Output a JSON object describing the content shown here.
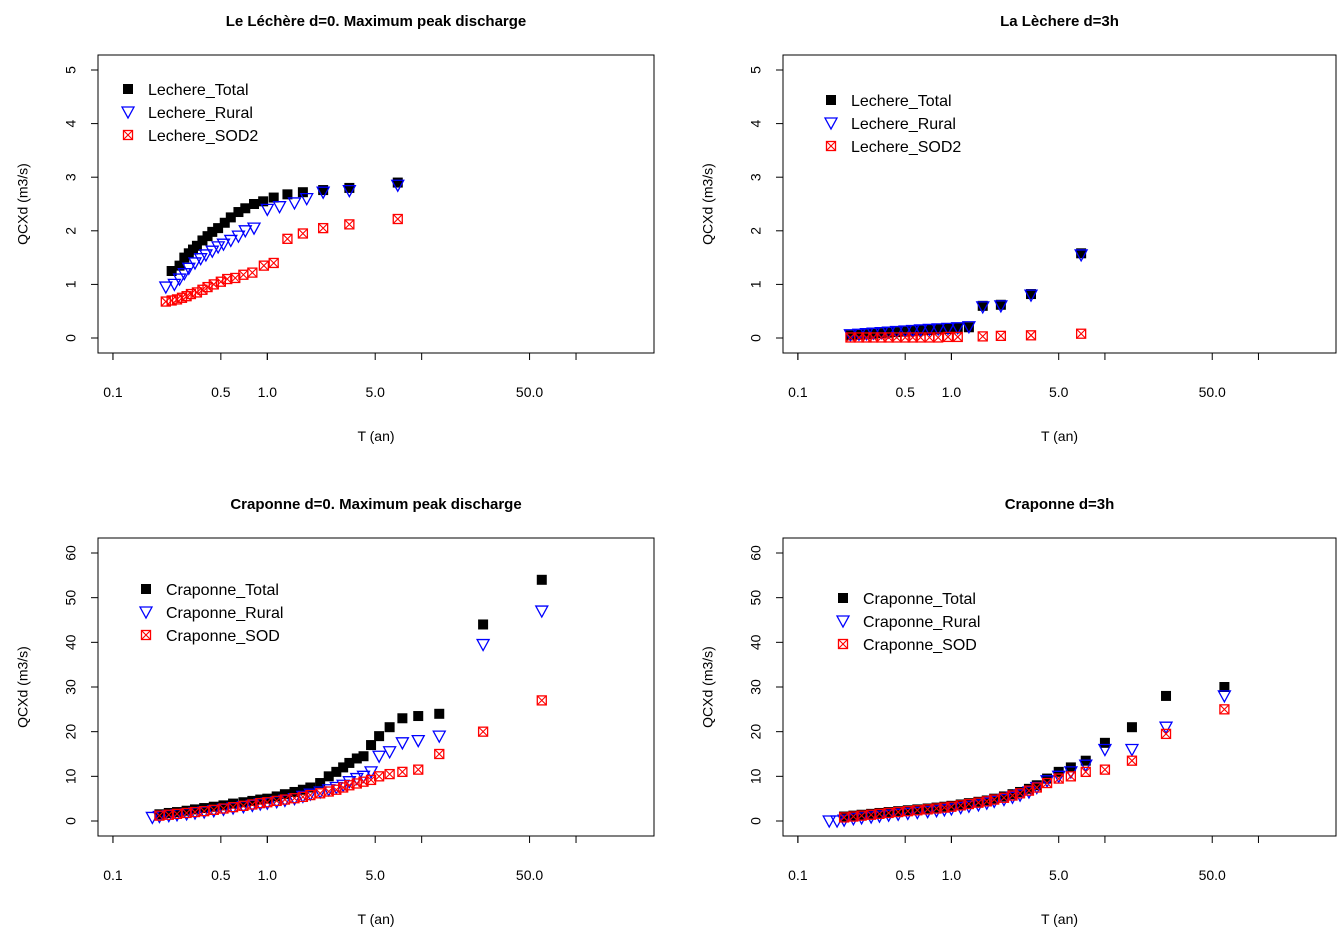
{
  "chart_data": [
    {
      "type": "scatter",
      "title": "Le Léchère d=0. Maximum peak discharge",
      "xlabel": "T (an)",
      "ylabel": "QCXd (m3/s)",
      "xscale": "log",
      "xlim": [
        0.08,
        320
      ],
      "ylim": [
        0,
        5
      ],
      "xticks": [
        0.1,
        0.5,
        1.0,
        5.0,
        50.0
      ],
      "yticks": [
        0,
        1,
        2,
        3,
        4,
        5
      ],
      "grid": false,
      "legend_position": "top-left",
      "series": [
        {
          "name": "Lechere_Total",
          "marker": "square",
          "color": "#000000",
          "x": [
            0.24,
            0.27,
            0.29,
            0.31,
            0.33,
            0.35,
            0.38,
            0.41,
            0.44,
            0.48,
            0.53,
            0.58,
            0.65,
            0.72,
            0.82,
            0.94,
            1.1,
            1.35,
            1.7,
            2.3,
            3.4,
            7.0
          ],
          "y": [
            1.25,
            1.35,
            1.5,
            1.58,
            1.65,
            1.72,
            1.82,
            1.9,
            1.98,
            2.05,
            2.15,
            2.25,
            2.35,
            2.42,
            2.5,
            2.55,
            2.62,
            2.68,
            2.72,
            2.76,
            2.8,
            2.9
          ]
        },
        {
          "name": "Lechere_Rural",
          "marker": "triangle-down",
          "color": "#0000ff",
          "x": [
            0.22,
            0.25,
            0.27,
            0.29,
            0.31,
            0.34,
            0.37,
            0.4,
            0.44,
            0.48,
            0.52,
            0.58,
            0.65,
            0.72,
            0.82,
            1.0,
            1.2,
            1.5,
            1.8,
            2.3,
            3.4,
            7.0
          ],
          "y": [
            0.95,
            1.0,
            1.1,
            1.2,
            1.3,
            1.4,
            1.48,
            1.55,
            1.62,
            1.7,
            1.75,
            1.82,
            1.9,
            2.0,
            2.05,
            2.4,
            2.45,
            2.52,
            2.6,
            2.72,
            2.75,
            2.85
          ]
        },
        {
          "name": "Lechere_SOD2",
          "marker": "square-x",
          "color": "#ff0000",
          "x": [
            0.22,
            0.24,
            0.26,
            0.28,
            0.3,
            0.32,
            0.35,
            0.38,
            0.41,
            0.45,
            0.5,
            0.55,
            0.62,
            0.7,
            0.8,
            0.95,
            1.1,
            1.35,
            1.7,
            2.3,
            3.4,
            7.0
          ],
          "y": [
            0.68,
            0.7,
            0.72,
            0.75,
            0.78,
            0.82,
            0.85,
            0.9,
            0.95,
            1.0,
            1.05,
            1.1,
            1.12,
            1.18,
            1.22,
            1.35,
            1.4,
            1.85,
            1.95,
            2.05,
            2.12,
            2.22
          ]
        }
      ]
    },
    {
      "type": "scatter",
      "title": "La Lèchere d=3h",
      "xlabel": "T (an)",
      "ylabel": "QCXd (m3/s)",
      "xscale": "log",
      "xlim": [
        0.08,
        320
      ],
      "ylim": [
        0,
        5
      ],
      "xticks": [
        0.1,
        0.5,
        1.0,
        5.0,
        50.0
      ],
      "yticks": [
        0,
        1,
        2,
        3,
        4,
        5
      ],
      "grid": false,
      "legend_position": "top-left",
      "series": [
        {
          "name": "Lechere_Total",
          "marker": "square",
          "color": "#000000",
          "x": [
            0.22,
            0.25,
            0.28,
            0.31,
            0.35,
            0.39,
            0.44,
            0.5,
            0.56,
            0.63,
            0.72,
            0.82,
            0.95,
            1.1,
            1.3,
            1.6,
            2.1,
            3.3,
            7.0
          ],
          "y": [
            0.05,
            0.06,
            0.07,
            0.08,
            0.09,
            0.1,
            0.11,
            0.12,
            0.13,
            0.14,
            0.15,
            0.16,
            0.17,
            0.18,
            0.2,
            0.6,
            0.62,
            0.82,
            1.58
          ]
        },
        {
          "name": "Lechere_Rural",
          "marker": "triangle-down",
          "color": "#0000ff",
          "x": [
            0.22,
            0.25,
            0.28,
            0.31,
            0.35,
            0.39,
            0.44,
            0.5,
            0.56,
            0.63,
            0.72,
            0.82,
            0.95,
            1.1,
            1.3,
            1.6,
            2.1,
            3.3,
            7.0
          ],
          "y": [
            0.06,
            0.07,
            0.08,
            0.09,
            0.1,
            0.11,
            0.12,
            0.13,
            0.14,
            0.15,
            0.16,
            0.17,
            0.18,
            0.19,
            0.21,
            0.58,
            0.6,
            0.8,
            1.55
          ]
        },
        {
          "name": "Lechere_SOD2",
          "marker": "square-x",
          "color": "#ff0000",
          "x": [
            0.22,
            0.25,
            0.28,
            0.31,
            0.35,
            0.39,
            0.44,
            0.5,
            0.56,
            0.63,
            0.72,
            0.82,
            0.95,
            1.1,
            1.6,
            2.1,
            3.3,
            7.0
          ],
          "y": [
            0.01,
            0.01,
            0.01,
            0.01,
            0.01,
            0.01,
            0.01,
            0.01,
            0.01,
            0.01,
            0.01,
            0.01,
            0.02,
            0.02,
            0.03,
            0.04,
            0.05,
            0.08
          ]
        }
      ]
    },
    {
      "type": "scatter",
      "title": "Craponne d=0. Maximum peak discharge",
      "xlabel": "T (an)",
      "ylabel": "QCXd (m3/s)",
      "xscale": "log",
      "xlim": [
        0.08,
        320
      ],
      "ylim": [
        0,
        60
      ],
      "xticks": [
        0.1,
        0.5,
        1.0,
        5.0,
        50.0
      ],
      "yticks": [
        0,
        10,
        20,
        30,
        40,
        50,
        60
      ],
      "grid": false,
      "legend_position": "top-left",
      "series": [
        {
          "name": "Craponne_Total",
          "marker": "square",
          "color": "#000000",
          "x": [
            0.2,
            0.23,
            0.26,
            0.3,
            0.34,
            0.39,
            0.45,
            0.52,
            0.6,
            0.7,
            0.8,
            0.9,
            1.0,
            1.15,
            1.3,
            1.5,
            1.7,
            1.9,
            2.2,
            2.5,
            2.8,
            3.1,
            3.4,
            3.8,
            4.2,
            4.7,
            5.3,
            6.2,
            7.5,
            9.5,
            13,
            25,
            60
          ],
          "y": [
            1.5,
            1.8,
            2.0,
            2.3,
            2.6,
            2.9,
            3.2,
            3.5,
            3.9,
            4.2,
            4.5,
            4.8,
            5.0,
            5.5,
            6.0,
            6.5,
            7.0,
            7.5,
            8.5,
            10,
            11,
            12,
            13,
            14,
            14.5,
            17,
            19,
            21,
            23,
            23.5,
            24,
            44,
            54
          ]
        },
        {
          "name": "Craponne_Rural",
          "marker": "triangle-down",
          "color": "#0000ff",
          "x": [
            0.18,
            0.2,
            0.23,
            0.26,
            0.3,
            0.34,
            0.39,
            0.45,
            0.52,
            0.6,
            0.7,
            0.8,
            0.9,
            1.0,
            1.15,
            1.3,
            1.5,
            1.7,
            1.9,
            2.2,
            2.5,
            2.8,
            3.1,
            3.4,
            3.8,
            4.2,
            4.7,
            5.3,
            6.2,
            7.5,
            9.5,
            13,
            25,
            60
          ],
          "y": [
            0.8,
            1.0,
            1.2,
            1.4,
            1.6,
            1.8,
            2.0,
            2.3,
            2.6,
            2.9,
            3.2,
            3.5,
            3.8,
            4.0,
            4.3,
            4.6,
            5.0,
            5.5,
            6.0,
            6.5,
            7.0,
            7.5,
            8.0,
            8.8,
            9.5,
            10,
            11,
            14.5,
            15.5,
            17.5,
            18,
            19,
            39.5,
            47
          ]
        },
        {
          "name": "Craponne_SOD",
          "marker": "square-x",
          "color": "#ff0000",
          "x": [
            0.2,
            0.23,
            0.26,
            0.3,
            0.34,
            0.39,
            0.45,
            0.52,
            0.6,
            0.7,
            0.8,
            0.9,
            1.0,
            1.15,
            1.3,
            1.5,
            1.7,
            1.9,
            2.2,
            2.5,
            2.8,
            3.1,
            3.4,
            3.8,
            4.2,
            4.7,
            5.3,
            6.2,
            7.5,
            9.5,
            13,
            25,
            60
          ],
          "y": [
            1.2,
            1.4,
            1.6,
            1.8,
            2.0,
            2.2,
            2.5,
            2.8,
            3.1,
            3.4,
            3.7,
            4.0,
            4.2,
            4.5,
            4.8,
            5.1,
            5.4,
            5.8,
            6.2,
            6.6,
            7.0,
            7.5,
            8.0,
            8.4,
            8.8,
            9.2,
            10,
            10.5,
            11,
            11.5,
            15,
            20,
            27
          ]
        }
      ]
    },
    {
      "type": "scatter",
      "title": "Craponne d=3h",
      "xlabel": "T (an)",
      "ylabel": "QCXd (m3/s)",
      "xscale": "log",
      "xlim": [
        0.08,
        320
      ],
      "ylim": [
        0,
        60
      ],
      "xticks": [
        0.1,
        0.5,
        1.0,
        5.0,
        50.0
      ],
      "yticks": [
        0,
        10,
        20,
        30,
        40,
        50,
        60
      ],
      "grid": false,
      "legend_position": "top-left",
      "series": [
        {
          "name": "Craponne_Total",
          "marker": "square",
          "color": "#000000",
          "x": [
            0.2,
            0.23,
            0.26,
            0.3,
            0.34,
            0.39,
            0.45,
            0.52,
            0.6,
            0.7,
            0.8,
            0.9,
            1.0,
            1.15,
            1.3,
            1.5,
            1.7,
            1.9,
            2.2,
            2.5,
            2.8,
            3.2,
            3.6,
            4.2,
            5,
            6,
            7.5,
            10,
            15,
            25,
            60
          ],
          "y": [
            1.0,
            1.2,
            1.4,
            1.6,
            1.8,
            2.0,
            2.2,
            2.4,
            2.6,
            2.8,
            3.0,
            3.2,
            3.4,
            3.7,
            4.0,
            4.3,
            4.6,
            5.0,
            5.5,
            6.0,
            6.5,
            7.2,
            8.0,
            9.5,
            11,
            12,
            13.5,
            17.5,
            21,
            28,
            30
          ]
        },
        {
          "name": "Craponne_Rural",
          "marker": "triangle-down",
          "color": "#0000ff",
          "x": [
            0.16,
            0.18,
            0.2,
            0.23,
            0.26,
            0.3,
            0.34,
            0.39,
            0.45,
            0.52,
            0.6,
            0.7,
            0.8,
            0.9,
            1.0,
            1.15,
            1.3,
            1.5,
            1.7,
            1.9,
            2.2,
            2.5,
            2.8,
            3.2,
            3.6,
            4.2,
            5,
            6,
            7.5,
            10,
            15,
            25,
            60
          ],
          "y": [
            0.0,
            0.0,
            0.2,
            0.5,
            0.7,
            0.9,
            1.1,
            1.3,
            1.5,
            1.7,
            1.9,
            2.1,
            2.3,
            2.5,
            2.7,
            3.0,
            3.3,
            3.6,
            4.0,
            4.4,
            4.8,
            5.3,
            5.8,
            6.5,
            7.5,
            9.0,
            10,
            11,
            12.5,
            16,
            16,
            21,
            28
          ]
        },
        {
          "name": "Craponne_SOD",
          "marker": "square-x",
          "color": "#ff0000",
          "x": [
            0.2,
            0.23,
            0.26,
            0.3,
            0.34,
            0.39,
            0.45,
            0.52,
            0.6,
            0.7,
            0.8,
            0.9,
            1.0,
            1.15,
            1.3,
            1.5,
            1.7,
            1.9,
            2.2,
            2.5,
            2.8,
            3.2,
            3.6,
            4.2,
            5,
            6,
            7.5,
            10,
            15,
            25,
            60
          ],
          "y": [
            0.8,
            1.0,
            1.2,
            1.4,
            1.6,
            1.8,
            2.0,
            2.2,
            2.4,
            2.6,
            2.8,
            3.0,
            3.2,
            3.5,
            3.8,
            4.1,
            4.4,
            4.8,
            5.2,
            5.7,
            6.2,
            6.8,
            7.5,
            8.5,
            9.5,
            10,
            11,
            11.5,
            13.5,
            19.5,
            25
          ]
        }
      ]
    }
  ]
}
